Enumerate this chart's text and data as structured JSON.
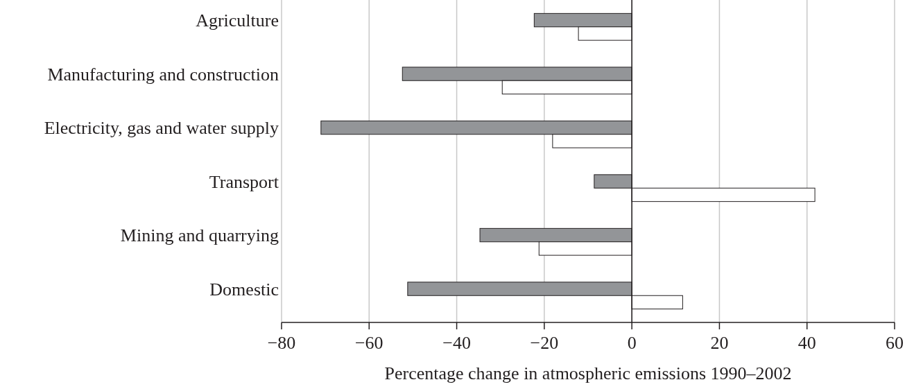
{
  "chart_data": {
    "type": "bar",
    "orientation": "horizontal",
    "categories": [
      "Agriculture",
      "Manufacturing and construction",
      "Electricity, gas and water supply",
      "Transport",
      "Mining and quarrying",
      "Domestic"
    ],
    "series": [
      {
        "color": "#939598",
        "values": [
          -22.3,
          -52.4,
          -71.0,
          -8.6,
          -34.7,
          -51.2
        ]
      },
      {
        "color": "#ffffff",
        "values": [
          -12.2,
          -29.6,
          -18.1,
          41.8,
          -21.2,
          11.6
        ]
      }
    ],
    "xlim": [
      -80,
      60
    ],
    "xticks": [
      {
        "value": -80,
        "label": "−80"
      },
      {
        "value": -60,
        "label": "−60"
      },
      {
        "value": -40,
        "label": "−40"
      },
      {
        "value": -20,
        "label": "−20"
      },
      0,
      20,
      40,
      60
    ],
    "xlabel": "Percentage change in atmospheric emissions 1990–2002",
    "grid": "x"
  }
}
